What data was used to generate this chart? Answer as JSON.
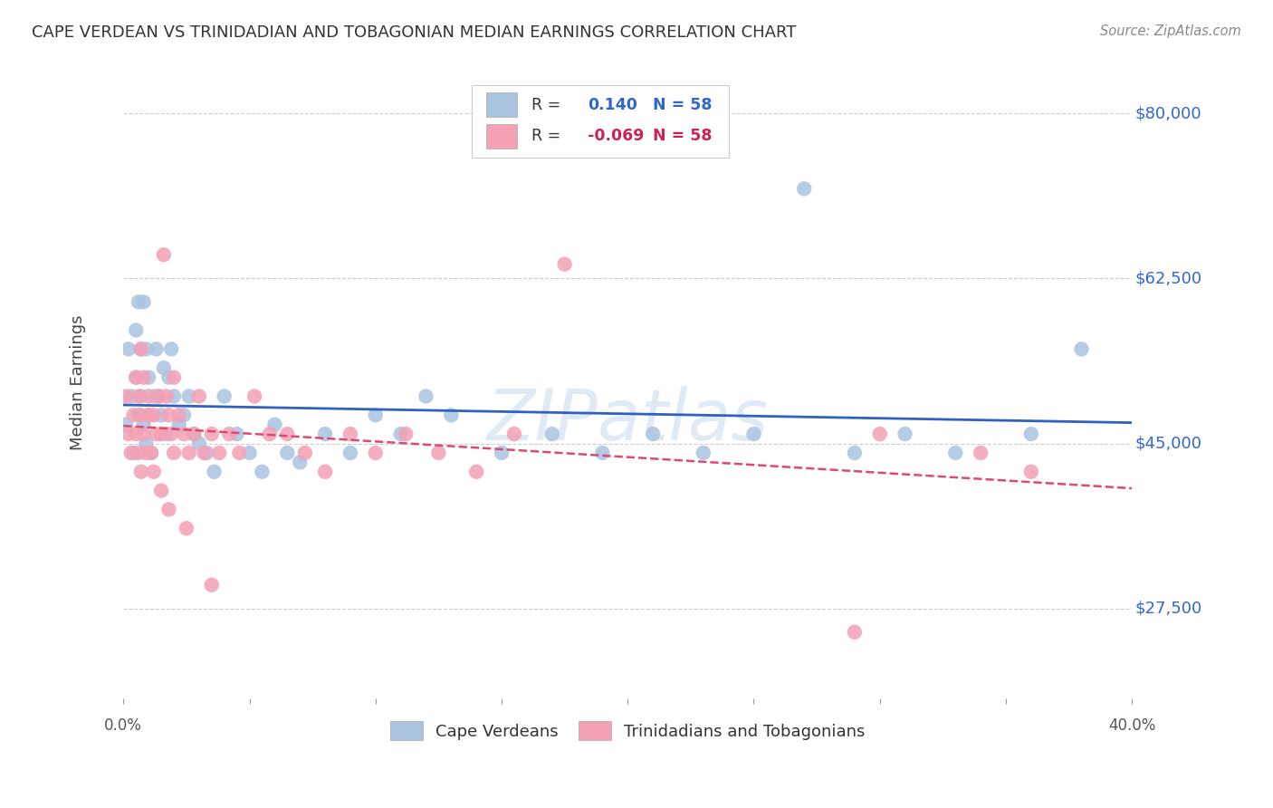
{
  "title": "CAPE VERDEAN VS TRINIDADIAN AND TOBAGONIAN MEDIAN EARNINGS CORRELATION CHART",
  "source": "Source: ZipAtlas.com",
  "ylabel": "Median Earnings",
  "r_blue": 0.14,
  "r_pink": -0.069,
  "n_blue": 58,
  "n_pink": 58,
  "xlim": [
    0.0,
    0.4
  ],
  "ylim": [
    18000,
    85000
  ],
  "yticks": [
    27500,
    45000,
    62500,
    80000
  ],
  "ytick_labels": [
    "$27,500",
    "$45,000",
    "$62,500",
    "$80,000"
  ],
  "watermark": "ZIPatlas",
  "blue_color": "#aac4e0",
  "pink_color": "#f4a0b5",
  "line_blue": "#3060c0",
  "line_pink": "#e04870",
  "blue_x": [
    0.001,
    0.002,
    0.003,
    0.004,
    0.005,
    0.005,
    0.006,
    0.006,
    0.007,
    0.007,
    0.008,
    0.008,
    0.009,
    0.009,
    0.01,
    0.01,
    0.011,
    0.012,
    0.013,
    0.014,
    0.015,
    0.016,
    0.017,
    0.018,
    0.019,
    0.02,
    0.022,
    0.024,
    0.026,
    0.028,
    0.03,
    0.033,
    0.036,
    0.04,
    0.045,
    0.05,
    0.055,
    0.06,
    0.065,
    0.07,
    0.08,
    0.09,
    0.1,
    0.11,
    0.12,
    0.13,
    0.15,
    0.17,
    0.19,
    0.21,
    0.23,
    0.25,
    0.27,
    0.29,
    0.31,
    0.33,
    0.36,
    0.38
  ],
  "blue_y": [
    47000,
    55000,
    50000,
    44000,
    57000,
    52000,
    60000,
    48000,
    55000,
    50000,
    60000,
    47000,
    55000,
    45000,
    52000,
    48000,
    44000,
    50000,
    55000,
    50000,
    48000,
    53000,
    46000,
    52000,
    55000,
    50000,
    47000,
    48000,
    50000,
    46000,
    45000,
    44000,
    42000,
    50000,
    46000,
    44000,
    42000,
    47000,
    44000,
    43000,
    46000,
    44000,
    48000,
    46000,
    50000,
    48000,
    44000,
    46000,
    44000,
    46000,
    44000,
    46000,
    72000,
    44000,
    46000,
    44000,
    46000,
    55000
  ],
  "pink_x": [
    0.001,
    0.002,
    0.003,
    0.004,
    0.005,
    0.005,
    0.006,
    0.006,
    0.007,
    0.007,
    0.008,
    0.008,
    0.009,
    0.01,
    0.01,
    0.011,
    0.012,
    0.013,
    0.014,
    0.015,
    0.016,
    0.017,
    0.018,
    0.019,
    0.02,
    0.022,
    0.024,
    0.026,
    0.028,
    0.03,
    0.032,
    0.035,
    0.038,
    0.042,
    0.046,
    0.052,
    0.058,
    0.065,
    0.072,
    0.08,
    0.09,
    0.1,
    0.112,
    0.125,
    0.14,
    0.155,
    0.175,
    0.3,
    0.34,
    0.36,
    0.007,
    0.012,
    0.015,
    0.018,
    0.02,
    0.025,
    0.035,
    0.29
  ],
  "pink_y": [
    50000,
    46000,
    44000,
    48000,
    52000,
    46000,
    50000,
    44000,
    55000,
    48000,
    52000,
    46000,
    44000,
    48000,
    50000,
    44000,
    48000,
    46000,
    50000,
    46000,
    65000,
    50000,
    48000,
    46000,
    52000,
    48000,
    46000,
    44000,
    46000,
    50000,
    44000,
    46000,
    44000,
    46000,
    44000,
    50000,
    46000,
    46000,
    44000,
    42000,
    46000,
    44000,
    46000,
    44000,
    42000,
    46000,
    64000,
    46000,
    44000,
    42000,
    42000,
    42000,
    40000,
    38000,
    44000,
    36000,
    30000,
    25000
  ]
}
